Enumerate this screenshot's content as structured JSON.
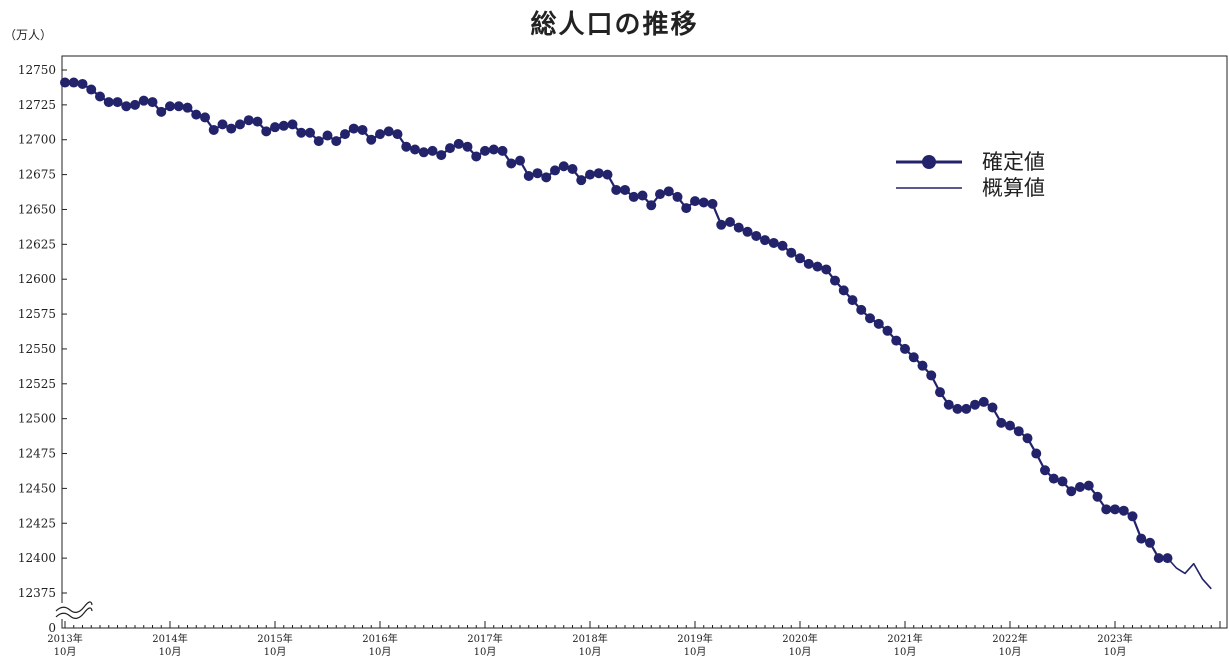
{
  "chart_data": {
    "type": "line",
    "title": "総人口の推移",
    "unit_label": "（万人）",
    "y_axis_break": true,
    "ylim": [
      12375,
      12750
    ],
    "y_ticks": [
      "0",
      "12375",
      "12400",
      "12425",
      "12450",
      "12475",
      "12500",
      "12525",
      "12550",
      "12575",
      "12600",
      "12625",
      "12650",
      "12675",
      "12700",
      "12725",
      "12750"
    ],
    "x_ticks": [
      {
        "year": "2013年",
        "month": "10月"
      },
      {
        "year": "2014年",
        "month": "10月"
      },
      {
        "year": "2015年",
        "month": "10月"
      },
      {
        "year": "2016年",
        "month": "10月"
      },
      {
        "year": "2017年",
        "month": "10月"
      },
      {
        "year": "2018年",
        "month": "10月"
      },
      {
        "year": "2019年",
        "month": "10月"
      },
      {
        "year": "2020年",
        "month": "10月"
      },
      {
        "year": "2021年",
        "month": "10月"
      },
      {
        "year": "2022年",
        "month": "10月"
      },
      {
        "year": "2023年",
        "month": "10月"
      }
    ],
    "x_start": "2013-10",
    "frequency": "monthly",
    "legend_position": "right",
    "series": [
      {
        "name": "確定値",
        "style": "line-with-markers",
        "color": "#23236b",
        "values": [
          12741,
          12741,
          12740,
          12736,
          12731,
          12727,
          12727,
          12724,
          12725,
          12728,
          12727,
          12720,
          12724,
          12724,
          12723,
          12718,
          12716,
          12707,
          12711,
          12708,
          12711,
          12714,
          12713,
          12706,
          12709,
          12710,
          12711,
          12705,
          12705,
          12699,
          12703,
          12699,
          12704,
          12708,
          12707,
          12700,
          12704,
          12706,
          12704,
          12695,
          12693,
          12691,
          12692,
          12689,
          12694,
          12697,
          12695,
          12688,
          12692,
          12693,
          12692,
          12683,
          12685,
          12674,
          12676,
          12673,
          12678,
          12681,
          12679,
          12671,
          12675,
          12676,
          12675,
          12664,
          12664,
          12659,
          12660,
          12653,
          12661,
          12663,
          12659,
          12651,
          12656,
          12655,
          12654,
          12639,
          12641,
          12637,
          12634,
          12631,
          12628,
          12626,
          12624,
          12619,
          12615,
          12611,
          12609,
          12607,
          12599,
          12592,
          12585,
          12578,
          12572,
          12568,
          12563,
          12556,
          12550,
          12544,
          12538,
          12531,
          12519,
          12510,
          12507,
          12507,
          12510,
          12512,
          12508,
          12497,
          12495,
          12491,
          12486,
          12475,
          12463,
          12457,
          12455,
          12448,
          12451,
          12452,
          12444,
          12435,
          12435,
          12434,
          12430,
          12414,
          12411,
          12400,
          12400
        ]
      },
      {
        "name": "概算値",
        "style": "line",
        "color": "#23236b",
        "values": [
          null,
          null,
          null,
          null,
          null,
          null,
          null,
          null,
          null,
          null,
          null,
          null,
          null,
          null,
          null,
          null,
          null,
          null,
          null,
          null,
          null,
          null,
          null,
          null,
          null,
          null,
          null,
          null,
          null,
          null,
          null,
          null,
          null,
          null,
          null,
          null,
          null,
          null,
          null,
          null,
          null,
          null,
          null,
          null,
          null,
          null,
          null,
          null,
          null,
          null,
          null,
          null,
          null,
          null,
          null,
          null,
          null,
          null,
          null,
          null,
          null,
          null,
          null,
          null,
          null,
          null,
          null,
          null,
          null,
          null,
          null,
          null,
          null,
          null,
          null,
          null,
          null,
          null,
          null,
          null,
          null,
          null,
          null,
          null,
          null,
          null,
          null,
          null,
          null,
          null,
          null,
          null,
          null,
          null,
          null,
          null,
          null,
          null,
          null,
          null,
          null,
          null,
          null,
          null,
          null,
          null,
          null,
          null,
          null,
          null,
          null,
          null,
          null,
          null,
          null,
          null,
          null,
          null,
          null,
          null,
          null,
          null,
          null,
          null,
          null,
          null,
          12400,
          12393,
          12389,
          12396,
          12385,
          12378
        ]
      }
    ]
  }
}
